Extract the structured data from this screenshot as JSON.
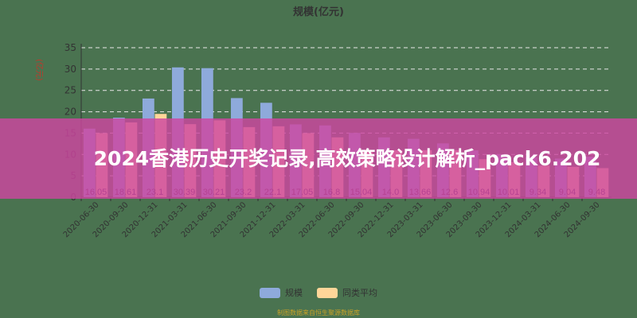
{
  "chart_data": {
    "type": "bar",
    "title": "规模(亿元)",
    "ylabel": "(亿元)",
    "xlabel": "",
    "ylim": [
      0,
      35
    ],
    "yticks": [
      0,
      5,
      10,
      15,
      20,
      25,
      30,
      35
    ],
    "grid": true,
    "legend_position": "bottom",
    "categories": [
      "2020-06-30",
      "2020-09-30",
      "2020-12-31",
      "2021-03-31",
      "2021-06-30",
      "2021-09-30",
      "2021-12-31",
      "2022-03-31",
      "2022-06-30",
      "2022-09-30",
      "2022-12-31",
      "2023-03-31",
      "2023-06-30",
      "2023-09-30",
      "2023-12-31",
      "2024-03-31",
      "2024-06-30",
      "2024-09-30"
    ],
    "series": [
      {
        "name": "规模",
        "color": "#8eaadb",
        "values": [
          16.05,
          18.61,
          23.1,
          30.39,
          30.21,
          23.2,
          22.1,
          17.05,
          16.8,
          15.04,
          14.0,
          13.66,
          12.6,
          10.94,
          10.01,
          9.34,
          9.04,
          9.48
        ],
        "labels": [
          "16.05",
          "18.61",
          "23.1",
          "30.39",
          "30.21",
          "23.2",
          "22.1",
          "17.05",
          "16.8",
          "15.04",
          "14.0",
          "13.66",
          "12.6",
          "10.94",
          "10.01",
          "9.34",
          "9.04",
          "9.48"
        ]
      },
      {
        "name": "同类平均",
        "color": "#ffd699",
        "values": [
          15.0,
          17.5,
          19.5,
          17.1,
          18.0,
          16.4,
          16.6,
          15.0,
          14.0,
          11.0,
          11.0,
          11.0,
          11.0,
          8.9,
          8.2,
          7.4,
          7.1,
          6.8
        ]
      }
    ]
  },
  "banner": {
    "text": "2024香港历史开奖记录,高效策略设计解析_pack6.202"
  },
  "footnote": "制图数据来自恒生聚源数据库",
  "colors": {
    "background": "#4a7350",
    "banner": "#cd46a0"
  }
}
